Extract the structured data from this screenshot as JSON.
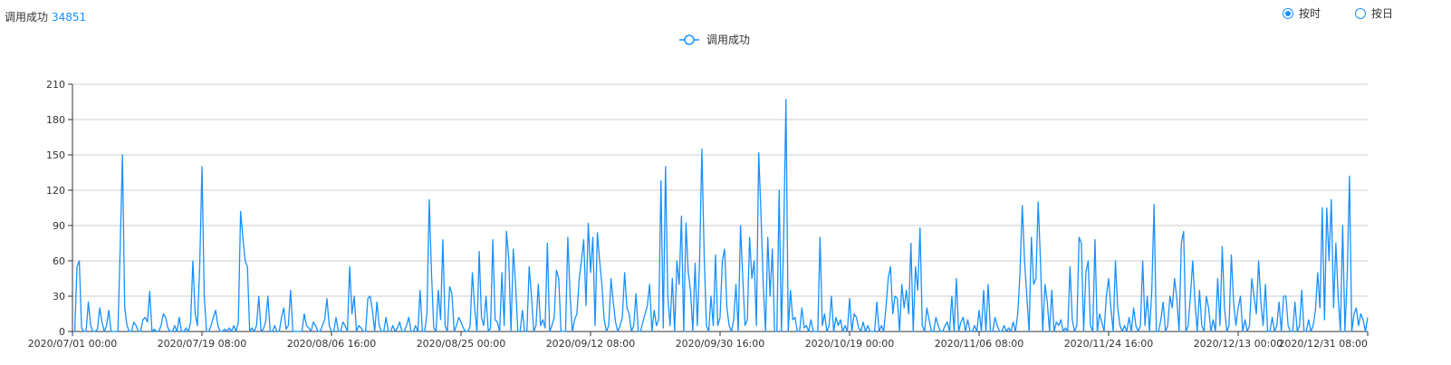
{
  "summary": {
    "label": "调用成功",
    "count": "34851"
  },
  "toggle": {
    "options": [
      {
        "label": "按时",
        "selected": true
      },
      {
        "label": "按日",
        "selected": false
      }
    ]
  },
  "colors": {
    "accent": "#1890ff",
    "grid": "#cccccc",
    "axis": "#333333"
  },
  "chart_data": {
    "type": "line",
    "series": [
      {
        "name": "调用成功",
        "values": [
          0,
          0,
          55,
          60,
          3,
          0,
          0,
          25,
          5,
          0,
          0,
          2,
          20,
          8,
          0,
          5,
          18,
          0,
          0,
          0,
          0,
          70,
          150,
          20,
          5,
          0,
          0,
          8,
          5,
          0,
          0,
          10,
          12,
          8,
          34,
          0,
          2,
          0,
          0,
          5,
          15,
          12,
          3,
          0,
          0,
          5,
          0,
          12,
          0,
          0,
          3,
          0,
          8,
          60,
          15,
          5,
          55,
          140,
          30,
          0,
          0,
          5,
          12,
          18,
          5,
          0,
          0,
          2,
          0,
          3,
          0,
          5,
          0,
          8,
          102,
          80,
          60,
          55,
          0,
          3,
          0,
          5,
          30,
          0,
          2,
          8,
          30,
          0,
          0,
          5,
          0,
          0,
          12,
          20,
          2,
          5,
          35,
          0,
          0,
          0,
          0,
          0,
          15,
          5,
          3,
          0,
          8,
          5,
          0,
          0,
          5,
          10,
          28,
          5,
          0,
          0,
          12,
          0,
          0,
          8,
          5,
          0,
          55,
          15,
          30,
          0,
          5,
          3,
          0,
          0,
          28,
          30,
          18,
          0,
          25,
          5,
          0,
          0,
          12,
          0,
          0,
          5,
          0,
          3,
          8,
          0,
          0,
          5,
          12,
          0,
          0,
          5,
          0,
          35,
          0,
          0,
          15,
          112,
          50,
          3,
          0,
          35,
          10,
          78,
          5,
          0,
          38,
          32,
          0,
          5,
          12,
          8,
          3,
          0,
          0,
          5,
          50,
          20,
          0,
          68,
          12,
          5,
          30,
          0,
          3,
          78,
          10,
          8,
          0,
          50,
          5,
          85,
          62,
          0,
          70,
          40,
          0,
          0,
          18,
          0,
          0,
          55,
          30,
          0,
          5,
          40,
          5,
          10,
          3,
          75,
          0,
          5,
          12,
          52,
          45,
          0,
          0,
          0,
          80,
          30,
          0,
          10,
          15,
          45,
          60,
          78,
          22,
          92,
          50,
          80,
          5,
          84,
          60,
          40,
          10,
          0,
          5,
          45,
          25,
          8,
          0,
          5,
          12,
          50,
          20,
          15,
          0,
          5,
          32,
          0,
          0,
          8,
          15,
          22,
          40,
          0,
          18,
          5,
          10,
          128,
          3,
          140,
          30,
          5,
          45,
          0,
          60,
          40,
          98,
          0,
          92,
          50,
          35,
          0,
          58,
          5,
          60,
          155,
          65,
          5,
          0,
          30,
          5,
          65,
          5,
          12,
          60,
          70,
          20,
          5,
          0,
          10,
          40,
          0,
          90,
          45,
          5,
          10,
          80,
          45,
          60,
          5,
          152,
          100,
          40,
          0,
          80,
          30,
          70,
          0,
          0,
          120,
          0,
          80,
          197,
          0,
          35,
          10,
          12,
          0,
          0,
          20,
          3,
          5,
          0,
          10,
          0,
          0,
          0,
          80,
          5,
          15,
          0,
          5,
          30,
          0,
          12,
          5,
          10,
          0,
          5,
          0,
          28,
          0,
          15,
          12,
          3,
          0,
          8,
          0,
          5,
          0,
          0,
          0,
          25,
          0,
          5,
          0,
          20,
          45,
          55,
          15,
          30,
          28,
          0,
          40,
          20,
          35,
          15,
          75,
          0,
          55,
          35,
          88,
          5,
          0,
          20,
          10,
          0,
          0,
          12,
          5,
          0,
          0,
          5,
          8,
          0,
          30,
          0,
          45,
          0,
          8,
          12,
          0,
          10,
          0,
          0,
          5,
          0,
          18,
          0,
          35,
          0,
          40,
          0,
          0,
          12,
          5,
          0,
          0,
          5,
          0,
          3,
          0,
          8,
          0,
          15,
          50,
          107,
          60,
          30,
          0,
          80,
          40,
          45,
          110,
          60,
          0,
          40,
          25,
          0,
          35,
          0,
          8,
          5,
          10,
          0,
          3,
          0,
          55,
          10,
          0,
          5,
          80,
          75,
          0,
          50,
          60,
          5,
          0,
          78,
          0,
          15,
          8,
          0,
          30,
          45,
          20,
          0,
          60,
          20,
          5,
          0,
          5,
          0,
          12,
          0,
          20,
          5,
          0,
          5,
          60,
          5,
          30,
          0,
          35,
          108,
          0,
          0,
          10,
          25,
          0,
          5,
          30,
          20,
          45,
          28,
          0,
          75,
          85,
          0,
          5,
          30,
          60,
          25,
          0,
          35,
          5,
          0,
          30,
          20,
          0,
          10,
          0,
          45,
          5,
          72,
          20,
          0,
          5,
          65,
          25,
          5,
          20,
          30,
          0,
          10,
          0,
          5,
          45,
          30,
          15,
          60,
          25,
          5,
          40,
          0,
          0,
          12,
          0,
          5,
          25,
          0,
          30,
          30,
          5,
          0,
          0,
          25,
          0,
          5,
          35,
          0,
          0,
          10,
          0,
          5,
          18,
          50,
          20,
          105,
          10,
          105,
          60,
          112,
          20,
          75,
          30,
          0,
          90,
          0,
          48,
          132,
          0,
          15,
          20,
          5,
          15,
          10,
          0,
          12
        ]
      }
    ],
    "x_ticks": [
      "2020/07/01 00:00",
      "2020/07/19 08:00",
      "2020/08/06 16:00",
      "2020/08/25 00:00",
      "2020/09/12 08:00",
      "2020/09/30 16:00",
      "2020/10/19 00:00",
      "2020/11/06 08:00",
      "2020/11/24 16:00",
      "2020/12/13 00:00",
      "2020/12/31 08:00"
    ],
    "y_ticks": [
      0,
      30,
      60,
      90,
      120,
      150,
      180,
      210
    ],
    "ylim": [
      0,
      210
    ],
    "title": "",
    "xlabel": "",
    "ylabel": "",
    "grid": true,
    "legend": "top-center"
  }
}
